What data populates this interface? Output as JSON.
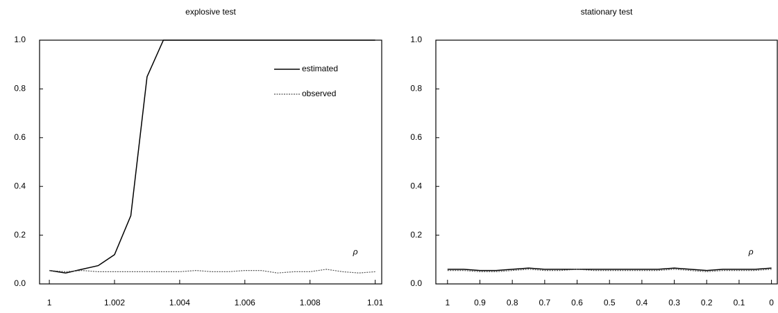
{
  "chart_data": [
    {
      "type": "line",
      "title": "explosive test",
      "annotation": "ρ",
      "x": [
        1,
        1.0005,
        1.001,
        1.0015,
        1.002,
        1.0025,
        1.003,
        1.0035,
        1.004,
        1.0045,
        1.005,
        1.0055,
        1.006,
        1.0065,
        1.007,
        1.0075,
        1.008,
        1.0085,
        1.009,
        1.0095,
        1.01
      ],
      "series": [
        {
          "name": "estimated",
          "color": "#000000",
          "linestyle": "solid",
          "values": [
            0.055,
            0.045,
            0.06,
            0.075,
            0.12,
            0.28,
            0.85,
            1.0,
            1.0,
            1.0,
            1.0,
            1.0,
            1.0,
            1.0,
            1.0,
            1.0,
            1.0,
            1.0,
            1.0,
            1.0,
            1.0
          ]
        },
        {
          "name": "observed",
          "color": "#555555",
          "linestyle": "dotted",
          "values": [
            0.055,
            0.05,
            0.055,
            0.05,
            0.05,
            0.05,
            0.05,
            0.05,
            0.05,
            0.055,
            0.05,
            0.05,
            0.055,
            0.055,
            0.045,
            0.05,
            0.05,
            0.06,
            0.05,
            0.045,
            0.05
          ]
        }
      ],
      "xlim": [
        0.9997,
        1.0102
      ],
      "xticks": [
        1,
        1.002,
        1.004,
        1.006,
        1.008,
        1.01
      ],
      "ylim": [
        0,
        1
      ],
      "yticks": [
        {
          "value": 0,
          "label": "0.0"
        },
        0.2,
        0.4,
        0.6,
        0.8,
        {
          "value": 1,
          "label": "1.0"
        }
      ],
      "legend": "upper right"
    },
    {
      "type": "line",
      "title": "stationary test",
      "annotation": "ρ",
      "x": [
        1,
        0.95,
        0.9,
        0.85,
        0.8,
        0.75,
        0.7,
        0.65,
        0.6,
        0.55,
        0.5,
        0.45,
        0.4,
        0.35,
        0.3,
        0.25,
        0.2,
        0.15,
        0.1,
        0.05,
        0
      ],
      "series": [
        {
          "name": "estimated",
          "color": "#000000",
          "linestyle": "solid",
          "values": [
            0.06,
            0.06,
            0.055,
            0.055,
            0.06,
            0.065,
            0.06,
            0.06,
            0.06,
            0.06,
            0.06,
            0.06,
            0.06,
            0.06,
            0.065,
            0.06,
            0.055,
            0.06,
            0.06,
            0.06,
            0.065
          ]
        },
        {
          "name": "observed",
          "color": "#555555",
          "linestyle": "dotted",
          "values": [
            0.055,
            0.055,
            0.05,
            0.05,
            0.055,
            0.06,
            0.055,
            0.055,
            0.06,
            0.055,
            0.055,
            0.055,
            0.055,
            0.055,
            0.06,
            0.055,
            0.05,
            0.055,
            0.055,
            0.055,
            0.06
          ]
        }
      ],
      "xlim": [
        1.036,
        -0.018
      ],
      "xticks": [
        1,
        0.9,
        0.8,
        0.7,
        0.6,
        0.5,
        0.4,
        0.3,
        0.2,
        0.1,
        0
      ],
      "ylim": [
        0,
        1
      ],
      "yticks": [
        {
          "value": 0,
          "label": "0.0"
        },
        0.2,
        0.4,
        0.6,
        0.8,
        {
          "value": 1,
          "label": "1.0"
        }
      ]
    }
  ]
}
